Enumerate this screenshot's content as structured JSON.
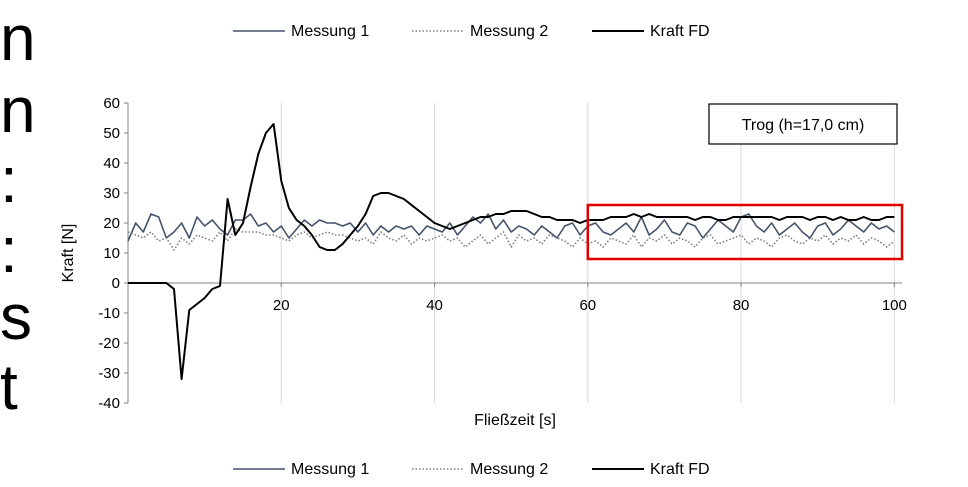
{
  "side_text": [
    "n",
    "n",
    ":",
    ":",
    "s",
    "t"
  ],
  "chart_data": {
    "type": "line",
    "title": "",
    "xlabel": "Fließzeit [s]",
    "ylabel": "Kraft [N]",
    "xlim": [
      0,
      101
    ],
    "ylim": [
      -40,
      60
    ],
    "x_ticks": [
      20,
      40,
      60,
      80,
      100
    ],
    "y_ticks": [
      60,
      50,
      40,
      30,
      20,
      10,
      0,
      -10,
      -20,
      -30,
      -40
    ],
    "grid": "vertical",
    "legend_top": [
      "Messung 1",
      "Messung 2",
      "Kraft FD"
    ],
    "legend_bottom": [
      "Messung 1",
      "Messung 2",
      "Kraft FD"
    ],
    "annotation": "Trog (h=17,0 cm)",
    "highlight_box": {
      "x0": 60,
      "x1": 101,
      "y0": 8,
      "y1": 26,
      "color": "#e00000"
    },
    "series": [
      {
        "name": "Messung 1",
        "color": "#44546a",
        "style": "solid",
        "points": [
          [
            0,
            14
          ],
          [
            1,
            20
          ],
          [
            2,
            17
          ],
          [
            3,
            23
          ],
          [
            4,
            22
          ],
          [
            5,
            15
          ],
          [
            6,
            17
          ],
          [
            7,
            20
          ],
          [
            8,
            15
          ],
          [
            9,
            22
          ],
          [
            10,
            19
          ],
          [
            11,
            21
          ],
          [
            12,
            18
          ],
          [
            13,
            16
          ],
          [
            14,
            21
          ],
          [
            15,
            21
          ],
          [
            16,
            23
          ],
          [
            17,
            19
          ],
          [
            18,
            20
          ],
          [
            19,
            17
          ],
          [
            20,
            19
          ],
          [
            21,
            15
          ],
          [
            22,
            18
          ],
          [
            23,
            21
          ],
          [
            24,
            19
          ],
          [
            25,
            21
          ],
          [
            26,
            20
          ],
          [
            27,
            20
          ],
          [
            28,
            19
          ],
          [
            29,
            20
          ],
          [
            30,
            17
          ],
          [
            31,
            20
          ],
          [
            32,
            16
          ],
          [
            33,
            19
          ],
          [
            34,
            17
          ],
          [
            35,
            19
          ],
          [
            36,
            18
          ],
          [
            37,
            19
          ],
          [
            38,
            16
          ],
          [
            39,
            19
          ],
          [
            40,
            18
          ],
          [
            41,
            17
          ],
          [
            42,
            20
          ],
          [
            43,
            16
          ],
          [
            44,
            19
          ],
          [
            45,
            22
          ],
          [
            46,
            20
          ],
          [
            47,
            23
          ],
          [
            48,
            18
          ],
          [
            49,
            21
          ],
          [
            50,
            17
          ],
          [
            51,
            19
          ],
          [
            52,
            18
          ],
          [
            53,
            16
          ],
          [
            54,
            19
          ],
          [
            55,
            17
          ],
          [
            56,
            15
          ],
          [
            57,
            19
          ],
          [
            58,
            20
          ],
          [
            59,
            16
          ],
          [
            60,
            19
          ],
          [
            61,
            20
          ],
          [
            62,
            17
          ],
          [
            63,
            16
          ],
          [
            64,
            18
          ],
          [
            65,
            20
          ],
          [
            66,
            17
          ],
          [
            67,
            22
          ],
          [
            68,
            16
          ],
          [
            69,
            18
          ],
          [
            70,
            21
          ],
          [
            71,
            17
          ],
          [
            72,
            16
          ],
          [
            73,
            20
          ],
          [
            74,
            19
          ],
          [
            75,
            15
          ],
          [
            76,
            18
          ],
          [
            77,
            21
          ],
          [
            78,
            19
          ],
          [
            79,
            17
          ],
          [
            80,
            22
          ],
          [
            81,
            23
          ],
          [
            82,
            19
          ],
          [
            83,
            17
          ],
          [
            84,
            20
          ],
          [
            85,
            16
          ],
          [
            86,
            18
          ],
          [
            87,
            20
          ],
          [
            88,
            17
          ],
          [
            89,
            15
          ],
          [
            90,
            19
          ],
          [
            91,
            20
          ],
          [
            92,
            16
          ],
          [
            93,
            18
          ],
          [
            94,
            21
          ],
          [
            95,
            19
          ],
          [
            96,
            17
          ],
          [
            97,
            20
          ],
          [
            98,
            18
          ],
          [
            99,
            19
          ],
          [
            100,
            17
          ]
        ]
      },
      {
        "name": "Messung 2",
        "color": "#7f7f7f",
        "style": "dotted",
        "points": [
          [
            0,
            17
          ],
          [
            1,
            16
          ],
          [
            2,
            15
          ],
          [
            3,
            17
          ],
          [
            4,
            14
          ],
          [
            5,
            15
          ],
          [
            6,
            11
          ],
          [
            7,
            15
          ],
          [
            8,
            13
          ],
          [
            9,
            16
          ],
          [
            10,
            15
          ],
          [
            11,
            14
          ],
          [
            12,
            17
          ],
          [
            13,
            14
          ],
          [
            14,
            18
          ],
          [
            15,
            17
          ],
          [
            16,
            17
          ],
          [
            17,
            17
          ],
          [
            18,
            16
          ],
          [
            19,
            16
          ],
          [
            20,
            15
          ],
          [
            21,
            14
          ],
          [
            22,
            16
          ],
          [
            23,
            17
          ],
          [
            24,
            15
          ],
          [
            25,
            16
          ],
          [
            26,
            17
          ],
          [
            27,
            16
          ],
          [
            28,
            16
          ],
          [
            29,
            15
          ],
          [
            30,
            14
          ],
          [
            31,
            15
          ],
          [
            32,
            13
          ],
          [
            33,
            17
          ],
          [
            34,
            15
          ],
          [
            35,
            14
          ],
          [
            36,
            16
          ],
          [
            37,
            13
          ],
          [
            38,
            15
          ],
          [
            39,
            14
          ],
          [
            40,
            15
          ],
          [
            41,
            16
          ],
          [
            42,
            14
          ],
          [
            43,
            15
          ],
          [
            44,
            12
          ],
          [
            45,
            14
          ],
          [
            46,
            16
          ],
          [
            47,
            13
          ],
          [
            48,
            15
          ],
          [
            49,
            17
          ],
          [
            50,
            12
          ],
          [
            51,
            16
          ],
          [
            52,
            14
          ],
          [
            53,
            15
          ],
          [
            54,
            13
          ],
          [
            55,
            16
          ],
          [
            56,
            15
          ],
          [
            57,
            14
          ],
          [
            58,
            12
          ],
          [
            59,
            15
          ],
          [
            60,
            13
          ],
          [
            61,
            14
          ],
          [
            62,
            12
          ],
          [
            63,
            15
          ],
          [
            64,
            14
          ],
          [
            65,
            13
          ],
          [
            66,
            16
          ],
          [
            67,
            12
          ],
          [
            68,
            15
          ],
          [
            69,
            14
          ],
          [
            70,
            16
          ],
          [
            71,
            13
          ],
          [
            72,
            15
          ],
          [
            73,
            14
          ],
          [
            74,
            12
          ],
          [
            75,
            15
          ],
          [
            76,
            16
          ],
          [
            77,
            13
          ],
          [
            78,
            14
          ],
          [
            79,
            15
          ],
          [
            80,
            16
          ],
          [
            81,
            13
          ],
          [
            82,
            15
          ],
          [
            83,
            14
          ],
          [
            84,
            12
          ],
          [
            85,
            15
          ],
          [
            86,
            16
          ],
          [
            87,
            14
          ],
          [
            88,
            13
          ],
          [
            89,
            15
          ],
          [
            90,
            14
          ],
          [
            91,
            16
          ],
          [
            92,
            13
          ],
          [
            93,
            15
          ],
          [
            94,
            14
          ],
          [
            95,
            16
          ],
          [
            96,
            13
          ],
          [
            97,
            15
          ],
          [
            98,
            14
          ],
          [
            99,
            12
          ],
          [
            100,
            14
          ]
        ]
      },
      {
        "name": "Kraft FD",
        "color": "#000000",
        "style": "solid",
        "points": [
          [
            0,
            0
          ],
          [
            5,
            0
          ],
          [
            6,
            -2
          ],
          [
            7,
            -32
          ],
          [
            8,
            -9
          ],
          [
            9,
            -7
          ],
          [
            10,
            -5
          ],
          [
            11,
            -2
          ],
          [
            12,
            -1
          ],
          [
            13,
            28
          ],
          [
            14,
            16
          ],
          [
            15,
            20
          ],
          [
            16,
            32
          ],
          [
            17,
            43
          ],
          [
            18,
            50
          ],
          [
            19,
            53
          ],
          [
            20,
            34
          ],
          [
            21,
            25
          ],
          [
            22,
            21
          ],
          [
            23,
            19
          ],
          [
            24,
            16
          ],
          [
            25,
            12
          ],
          [
            26,
            11
          ],
          [
            27,
            11
          ],
          [
            28,
            13
          ],
          [
            29,
            16
          ],
          [
            30,
            19
          ],
          [
            31,
            23
          ],
          [
            32,
            29
          ],
          [
            33,
            30
          ],
          [
            34,
            30
          ],
          [
            35,
            29
          ],
          [
            36,
            28
          ],
          [
            37,
            26
          ],
          [
            38,
            24
          ],
          [
            39,
            22
          ],
          [
            40,
            20
          ],
          [
            41,
            19
          ],
          [
            42,
            18
          ],
          [
            43,
            19
          ],
          [
            44,
            20
          ],
          [
            45,
            21
          ],
          [
            46,
            22
          ],
          [
            47,
            22
          ],
          [
            48,
            23
          ],
          [
            49,
            23
          ],
          [
            50,
            24
          ],
          [
            51,
            24
          ],
          [
            52,
            24
          ],
          [
            53,
            23
          ],
          [
            54,
            22
          ],
          [
            55,
            22
          ],
          [
            56,
            21
          ],
          [
            57,
            21
          ],
          [
            58,
            21
          ],
          [
            59,
            20
          ],
          [
            60,
            21
          ],
          [
            61,
            21
          ],
          [
            62,
            21
          ],
          [
            63,
            22
          ],
          [
            64,
            22
          ],
          [
            65,
            22
          ],
          [
            66,
            23
          ],
          [
            67,
            22
          ],
          [
            68,
            23
          ],
          [
            69,
            22
          ],
          [
            70,
            22
          ],
          [
            71,
            22
          ],
          [
            72,
            22
          ],
          [
            73,
            22
          ],
          [
            74,
            21
          ],
          [
            75,
            22
          ],
          [
            76,
            22
          ],
          [
            77,
            21
          ],
          [
            78,
            21
          ],
          [
            79,
            22
          ],
          [
            80,
            22
          ],
          [
            81,
            22
          ],
          [
            82,
            22
          ],
          [
            83,
            22
          ],
          [
            84,
            22
          ],
          [
            85,
            21
          ],
          [
            86,
            22
          ],
          [
            87,
            22
          ],
          [
            88,
            22
          ],
          [
            89,
            21
          ],
          [
            90,
            22
          ],
          [
            91,
            22
          ],
          [
            92,
            21
          ],
          [
            93,
            22
          ],
          [
            94,
            21
          ],
          [
            95,
            21
          ],
          [
            96,
            22
          ],
          [
            97,
            21
          ],
          [
            98,
            21
          ],
          [
            99,
            22
          ],
          [
            100,
            22
          ]
        ]
      }
    ]
  }
}
